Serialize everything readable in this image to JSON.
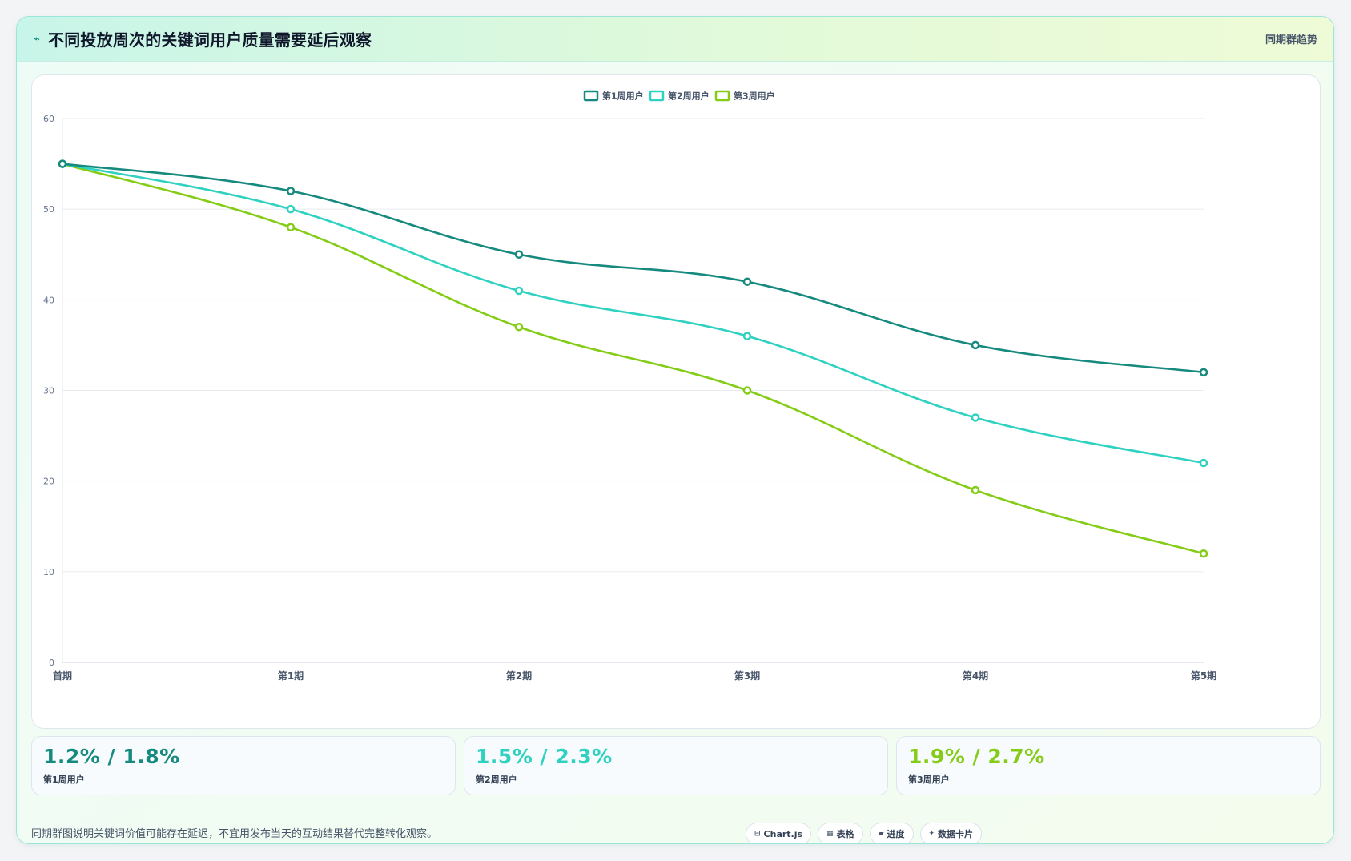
{
  "header": {
    "icon": "trend-icon",
    "title": "不同投放周次的关键词用户质量需要延后观察",
    "subtitle": "同期群趋势"
  },
  "chart_data": {
    "type": "line",
    "categories": [
      "首期",
      "第1期",
      "第2期",
      "第3期",
      "第4期",
      "第5期"
    ],
    "series": [
      {
        "name": "第1周用户",
        "values": [
          55,
          52,
          45,
          42,
          35,
          32
        ],
        "color": "#168a7e"
      },
      {
        "name": "第2周用户",
        "values": [
          55,
          50,
          41,
          36,
          27,
          22
        ],
        "color": "#2fd1c0"
      },
      {
        "name": "第3周用户",
        "values": [
          55,
          48,
          37,
          30,
          19,
          12
        ],
        "color": "#84cc16"
      }
    ],
    "ylim": [
      0,
      60
    ],
    "yticks": [
      0,
      10,
      20,
      30,
      40,
      50,
      60
    ],
    "grid": true,
    "legend": "top-center",
    "curve": "smooth"
  },
  "metrics": [
    {
      "value": "1.2% / 1.8%",
      "label": "第1周用户",
      "color": "#168a7e"
    },
    {
      "value": "1.5% / 2.3%",
      "label": "第2周用户",
      "color": "#2fd1c0"
    },
    {
      "value": "1.9% / 2.7%",
      "label": "第3周用户",
      "color": "#84cc16"
    }
  ],
  "footer": {
    "note": "同期群图说明关键词价值可能存在延迟，不宜用发布当天的互动结果替代完整转化观察。",
    "chips": [
      {
        "icon": "table-icon",
        "glyph": "⊟",
        "label": "Chart.js"
      },
      {
        "icon": "grid-icon",
        "glyph": "▦",
        "label": "表格"
      },
      {
        "icon": "progress-icon",
        "glyph": "▰",
        "label": "进度"
      },
      {
        "icon": "sparkle-icon",
        "glyph": "✦",
        "label": "数据卡片"
      }
    ]
  }
}
